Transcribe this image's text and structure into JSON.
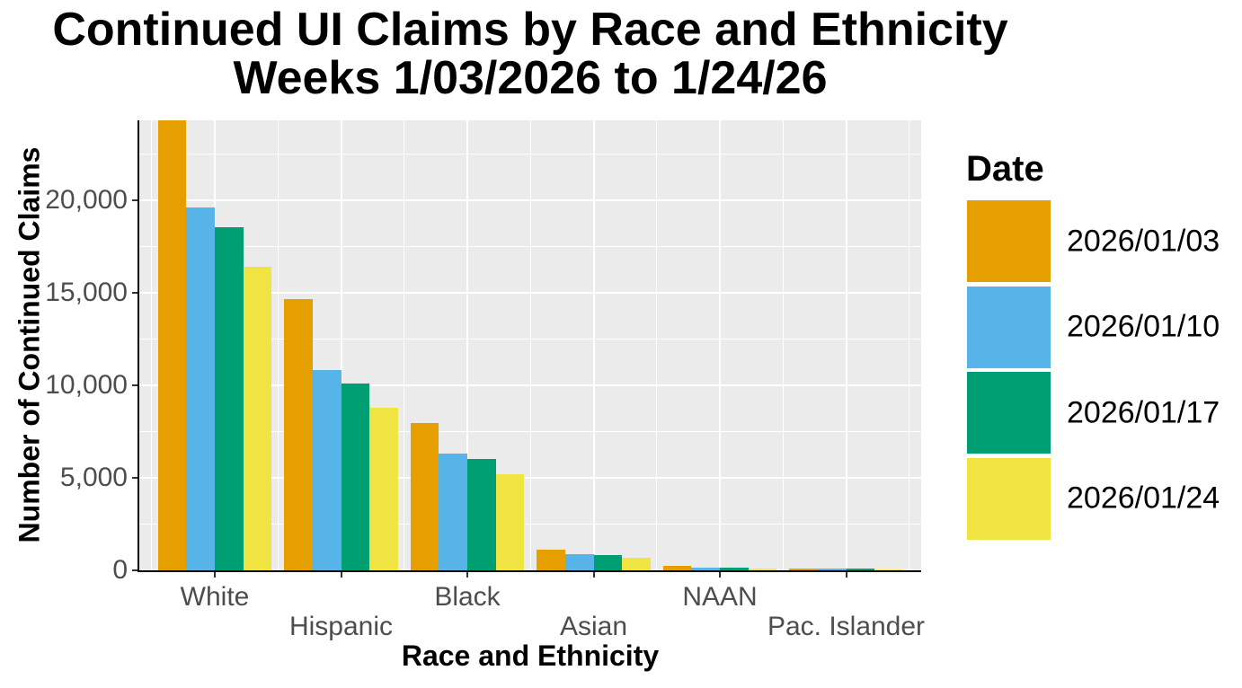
{
  "title": {
    "line1": "Continued UI Claims by Race and Ethnicity",
    "line2": "Weeks 1/03/2026 to 1/24/26"
  },
  "chart_data": {
    "type": "bar",
    "title": "Continued UI Claims by Race and Ethnicity — Weeks 1/03/2026 to 1/24/26",
    "xlabel": "Race and Ethnicity",
    "ylabel": "Number of Continued Claims",
    "categories": [
      "White",
      "Hispanic",
      "Black",
      "Asian",
      "NAAN",
      "Pac. Islander"
    ],
    "series": [
      {
        "name": "2026/01/03",
        "color": "#E69F00",
        "values": [
          24300,
          14650,
          7950,
          1130,
          240,
          100
        ]
      },
      {
        "name": "2026/01/10",
        "color": "#56B4E9",
        "values": [
          19600,
          10800,
          6300,
          870,
          160,
          75
        ]
      },
      {
        "name": "2026/01/17",
        "color": "#009E73",
        "values": [
          18550,
          10100,
          6000,
          820,
          130,
          90
        ]
      },
      {
        "name": "2026/01/24",
        "color": "#F0E442",
        "values": [
          16400,
          8800,
          5200,
          670,
          120,
          55
        ]
      }
    ],
    "ylim": [
      0,
      24300
    ],
    "yticks": [
      0,
      5000,
      10000,
      15000,
      20000
    ],
    "ytick_labels": [
      "0",
      "5,000",
      "10,000",
      "15,000",
      "20,000"
    ],
    "minor_tick_step": 2500,
    "grid": true,
    "panel_bg": "#EBEBEB",
    "grid_color": "#FFFFFF",
    "axis_text_color": "#4D4D4D",
    "legend_title": "Date",
    "legend_position": "right"
  }
}
